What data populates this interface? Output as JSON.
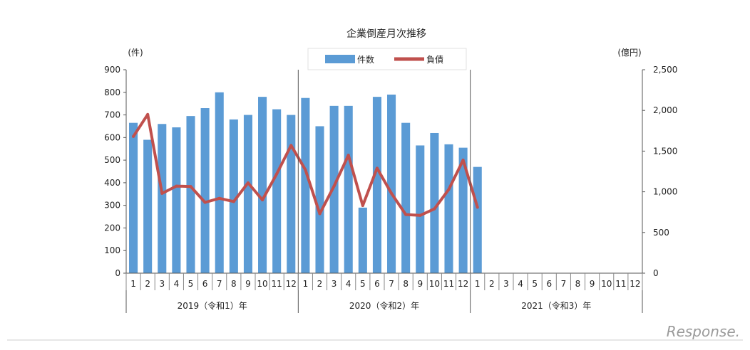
{
  "chart_data": {
    "type": "bar",
    "title": "企業倒産月次推移",
    "left_unit": "(件)",
    "right_unit": "(億円)",
    "y_left_range": [
      0,
      900
    ],
    "y_left_ticks": [
      "0",
      "100",
      "200",
      "300",
      "400",
      "500",
      "600",
      "700",
      "800",
      "900"
    ],
    "y_right_range": [
      0,
      2500
    ],
    "y_right_ticks": [
      "0",
      "500",
      "1,000",
      "1,500",
      "2,000",
      "2,500"
    ],
    "categories": [
      "1",
      "2",
      "3",
      "4",
      "5",
      "6",
      "7",
      "8",
      "9",
      "10",
      "11",
      "12",
      "1",
      "2",
      "3",
      "4",
      "5",
      "6",
      "7",
      "8",
      "9",
      "10",
      "11",
      "12",
      "1",
      "2",
      "3",
      "4",
      "5",
      "6",
      "7",
      "8",
      "9",
      "10",
      "11",
      "12"
    ],
    "year_labels": [
      "2019（令和1）年",
      "2020（令和2）年",
      "2021（令和3）年"
    ],
    "series": [
      {
        "name": "件数",
        "kind": "bar",
        "axis": "left",
        "color": "#5b9bd5",
        "values": [
          665,
          590,
          660,
          645,
          695,
          730,
          800,
          680,
          700,
          780,
          725,
          700,
          775,
          650,
          740,
          740,
          290,
          780,
          790,
          665,
          565,
          620,
          570,
          555,
          470,
          null,
          null,
          null,
          null,
          null,
          null,
          null,
          null,
          null,
          null,
          null
        ]
      },
      {
        "name": "負債",
        "kind": "line",
        "axis": "right",
        "color": "#c0504d",
        "values": [
          1680,
          1950,
          980,
          1070,
          1065,
          870,
          920,
          880,
          1110,
          900,
          1220,
          1570,
          1270,
          730,
          1070,
          1450,
          830,
          1290,
          980,
          720,
          710,
          790,
          1030,
          1390,
          810,
          null,
          null,
          null,
          null,
          null,
          null,
          null,
          null,
          null,
          null,
          null
        ]
      }
    ],
    "legend_position": "top-center",
    "grid": false
  },
  "watermark": "Response."
}
